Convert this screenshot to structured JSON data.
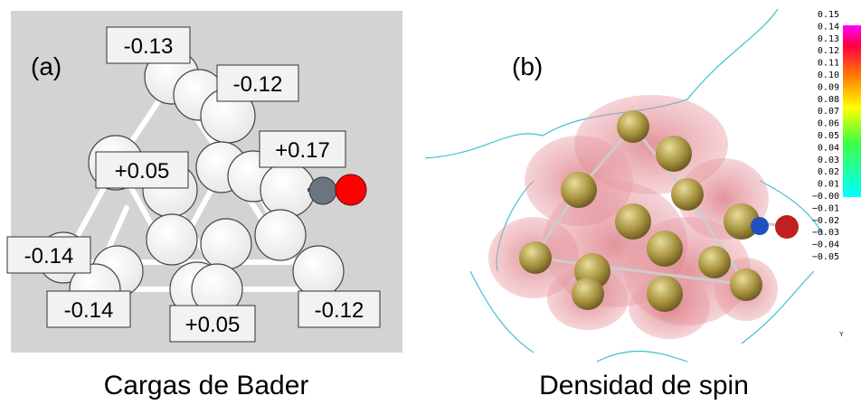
{
  "panel_a": {
    "label": "(a)",
    "charges": [
      "-0.13",
      "-0.12",
      "+0.17",
      "+0.05",
      "-0.14",
      "-0.14",
      "+0.05",
      "-0.12"
    ],
    "caption": "Cargas de Bader"
  },
  "panel_b": {
    "label": "(b)",
    "colorbar_ticks": [
      "0.15",
      "0.14",
      "0.13",
      "0.12",
      "0.11",
      "0.10",
      "0.09",
      "0.08",
      "0.07",
      "0.06",
      "0.05",
      "0.04",
      "0.03",
      "0.02",
      "0.01",
      "−0.00",
      "−0.01",
      "−0.02",
      "−0.03",
      "−0.04",
      "−0.05"
    ],
    "axis_label": "Y",
    "caption": "Densidad de spin"
  }
}
